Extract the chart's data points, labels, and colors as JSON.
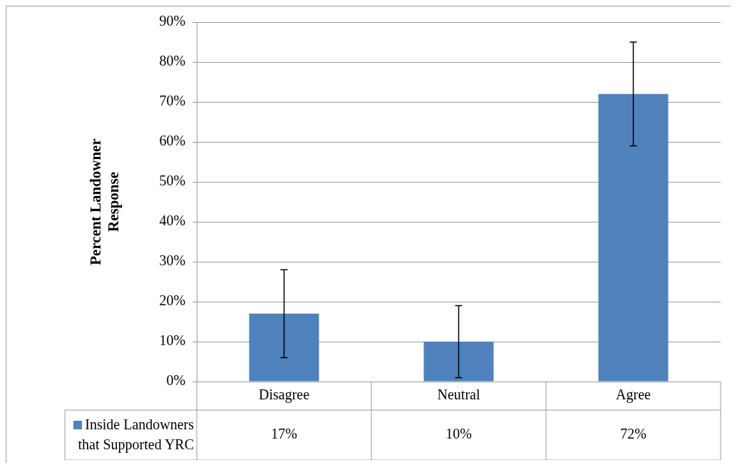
{
  "chart_data": {
    "type": "bar",
    "ylabel": "Percent Landowner Response",
    "categories": [
      "Disagree",
      "Neutral",
      "Agree"
    ],
    "series": [
      {
        "name": "Inside Landowners that Supported YRC",
        "color": "#4f81bd",
        "values": [
          17,
          10,
          72
        ],
        "errors": [
          11,
          9,
          13
        ],
        "value_labels": [
          "17%",
          "10%",
          "72%"
        ]
      }
    ],
    "ylim": [
      0,
      90
    ],
    "yticks": [
      {
        "value": 0,
        "label": "0%"
      },
      {
        "value": 10,
        "label": "10%"
      },
      {
        "value": 20,
        "label": "20%"
      },
      {
        "value": 30,
        "label": "30%"
      },
      {
        "value": 40,
        "label": "40%"
      },
      {
        "value": 50,
        "label": "50%"
      },
      {
        "value": 60,
        "label": "60%"
      },
      {
        "value": 70,
        "label": "70%"
      },
      {
        "value": 80,
        "label": "80%"
      },
      {
        "value": 90,
        "label": "90%"
      }
    ],
    "grid": "y",
    "legend": "bottom left"
  }
}
